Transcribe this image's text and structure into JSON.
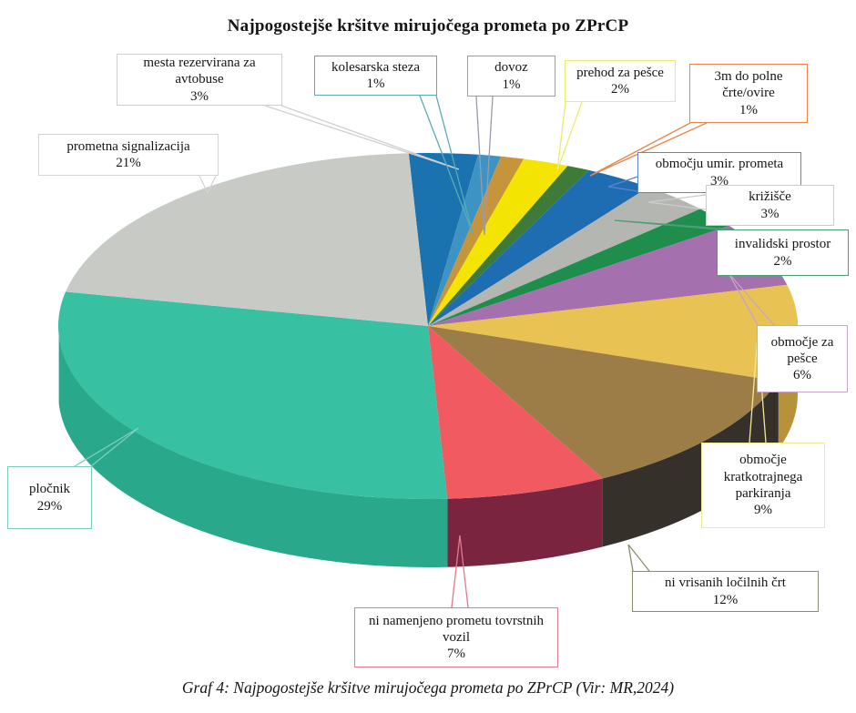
{
  "page": {
    "title": "Najpogostejše kršitve mirujočega prometa po ZPrCP",
    "caption": "Graf 4: Najpogostejše kršitve mirujočega prometa po ZPrCP (Vir: MR,2024)"
  },
  "chart_data": {
    "type": "pie",
    "three_d": true,
    "title": "Najpogostejše kršitve mirujočega prometa po ZPrCP",
    "start_angle_deg": -3,
    "direction": "clockwise",
    "unit": "%",
    "slices": [
      {
        "label": "mesta rezervirana za avtobuse",
        "pct": 3,
        "color": "#1a73ae",
        "side_color": "#125179",
        "callout_border": "#cfcfcf"
      },
      {
        "label": "kolesarska steza",
        "pct": 1,
        "color": "#3d93c4",
        "side_color": "#2a6a92",
        "callout_border": "#5aabb5"
      },
      {
        "label": "dovoz",
        "pct": 1,
        "color": "#c6953b",
        "side_color": "#8e6a28",
        "callout_border": "#9a9aae"
      },
      {
        "label": "prehod za pešce",
        "pct": 2,
        "color": "#f3e402",
        "side_color": "#b5aa00",
        "callout_border": "#ecec6a"
      },
      {
        "label": "3m do polne črte/ovire",
        "pct": 1,
        "color": "#3e7b39",
        "side_color": "#2a5426",
        "callout_border": "#e8854e"
      },
      {
        "label": "območju umir. prometa",
        "pct": 3,
        "color": "#1e6cb2",
        "side_color": "#154d80",
        "callout_border": "#5b85cc"
      },
      {
        "label": "križišče",
        "pct": 3,
        "color": "#b3b6b1",
        "side_color": "#84867f",
        "callout_border": "#cccccc"
      },
      {
        "label": "invalidski prostor",
        "pct": 2,
        "color": "#1f8e4d",
        "side_color": "#156336",
        "callout_border": "#4c9e74"
      },
      {
        "label": "območje za pešce",
        "pct": 6,
        "color": "#a471ae",
        "side_color": "#77507e",
        "callout_border": "#c7a4cb"
      },
      {
        "label": "območje kratkotrajnega parkiranja",
        "pct": 9,
        "color": "#e9c254",
        "side_color": "#b8923a",
        "callout_border": "#f0ea96"
      },
      {
        "label": "ni vrisanih ločilnih črt",
        "pct": 12,
        "color": "#9c7d48",
        "side_color": "#35312a",
        "callout_border": "#8c8c6e"
      },
      {
        "label": "ni namenjeno prometu tovrstnih vozil",
        "pct": 7,
        "color": "#f05a60",
        "side_color": "#7a2440",
        "callout_border": "#e07a8c"
      },
      {
        "label": "pločnik",
        "pct": 29,
        "color": "#38c0a2",
        "side_color": "#2aa88c",
        "callout_border": "#7fccbd"
      },
      {
        "label": "prometna signalizacija",
        "pct": 21,
        "color": "#c8cac5",
        "side_color": "#96988f",
        "callout_border": "#d4d4d4"
      }
    ]
  }
}
